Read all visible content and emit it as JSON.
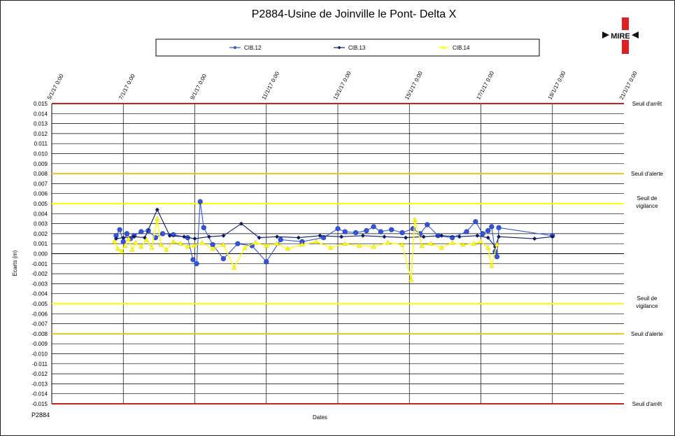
{
  "chart_data": {
    "type": "line",
    "title": "P2884-Usine de  Joinville le Pont- Delta X",
    "xlabel": "Dates",
    "ylabel": "Ecarts (m)",
    "corner_label": "P2884",
    "logo_text": "MIRE",
    "x_ticks": [
      "5/1/17 0:00",
      "7/1/17 0:00",
      "9/1/17 0:00",
      "11/1/17 0:00",
      "13/1/17 0:00",
      "15/1/17 0:00",
      "17/1/17 0:00",
      "19/1/17 0:00",
      "21/1/17 0:00"
    ],
    "x_tick_values": [
      0,
      2,
      4,
      6,
      8,
      10,
      12,
      14,
      16
    ],
    "xlim": [
      0,
      16
    ],
    "ylim": [
      -0.015,
      0.015
    ],
    "y_ticks": [
      "0.015",
      "0.014",
      "0.013",
      "0.012",
      "0.011",
      "0.010",
      "0.009",
      "0.008",
      "0.007",
      "0.006",
      "0.005",
      "0.004",
      "0.003",
      "0.002",
      "0.001",
      "0.000",
      "-0.001",
      "-0.002",
      "-0.003",
      "-0.004",
      "-0.005",
      "-0.006",
      "-0.007",
      "-0.008",
      "-0.009",
      "-0.010",
      "-0.011",
      "-0.012",
      "-0.013",
      "-0.014",
      "-0.015"
    ],
    "y_tick_values": [
      0.015,
      0.014,
      0.013,
      0.012,
      0.011,
      0.01,
      0.009,
      0.008,
      0.007,
      0.006,
      0.005,
      0.004,
      0.003,
      0.002,
      0.001,
      0.0,
      -0.001,
      -0.002,
      -0.003,
      -0.004,
      -0.005,
      -0.006,
      -0.007,
      -0.008,
      -0.009,
      -0.01,
      -0.011,
      -0.012,
      -0.013,
      -0.014,
      -0.015
    ],
    "grid": true,
    "legend_position": "top",
    "thresholds": [
      {
        "label": "Seuil d'arrêt",
        "value": 0.015,
        "color": "#c0241c"
      },
      {
        "label": "Seuil d'alerte",
        "value": 0.008,
        "color": "#e8c41a"
      },
      {
        "label": "Seuil de vigilance",
        "value": 0.005,
        "color": "#ffff00"
      },
      {
        "label": "Seuil de vigilance",
        "value": -0.005,
        "color": "#ffff00"
      },
      {
        "label": "Seuil d'alerte",
        "value": -0.008,
        "color": "#e8c41a"
      },
      {
        "label": "Seuil d'arrêt",
        "value": -0.015,
        "color": "#c0241c"
      }
    ],
    "series": [
      {
        "name": "CIB.12",
        "color": "#3355dd",
        "marker": "circle",
        "points": [
          [
            1.8,
            0.0018
          ],
          [
            1.9,
            0.0024
          ],
          [
            2.0,
            0.0012
          ],
          [
            2.1,
            0.002
          ],
          [
            2.2,
            0.0015
          ],
          [
            2.3,
            0.0018
          ],
          [
            2.5,
            0.0022
          ],
          [
            2.7,
            0.0023
          ],
          [
            2.9,
            0.0016
          ],
          [
            3.1,
            0.002
          ],
          [
            3.4,
            0.0019
          ],
          [
            3.8,
            0.0016
          ],
          [
            3.95,
            -0.0006
          ],
          [
            4.05,
            -0.001
          ],
          [
            4.15,
            0.0052
          ],
          [
            4.25,
            0.0026
          ],
          [
            4.5,
            0.0009
          ],
          [
            4.8,
            -0.0005
          ],
          [
            5.2,
            0.001
          ],
          [
            5.6,
            0.0008
          ],
          [
            6.0,
            -0.0008
          ],
          [
            6.4,
            0.0014
          ],
          [
            7.0,
            0.0012
          ],
          [
            7.6,
            0.0016
          ],
          [
            8.0,
            0.0025
          ],
          [
            8.2,
            0.0022
          ],
          [
            8.5,
            0.0021
          ],
          [
            8.8,
            0.0023
          ],
          [
            9.0,
            0.0027
          ],
          [
            9.2,
            0.0022
          ],
          [
            9.5,
            0.0024
          ],
          [
            9.8,
            0.0021
          ],
          [
            10.1,
            0.0025
          ],
          [
            10.3,
            0.002
          ],
          [
            10.5,
            0.0029
          ],
          [
            10.8,
            0.0018
          ],
          [
            11.2,
            0.0016
          ],
          [
            11.6,
            0.0022
          ],
          [
            11.85,
            0.0032
          ],
          [
            12.05,
            0.002
          ],
          [
            12.2,
            0.0023
          ],
          [
            12.3,
            0.0027
          ],
          [
            12.4,
            0.0002
          ],
          [
            12.45,
            -0.0003
          ],
          [
            12.5,
            0.0026
          ],
          [
            14.0,
            0.0018
          ]
        ]
      },
      {
        "name": "CIB.13",
        "color": "#0c1a66",
        "marker": "diamond",
        "points": [
          [
            1.8,
            0.0015
          ],
          [
            2.0,
            0.0016
          ],
          [
            2.3,
            0.0017
          ],
          [
            2.6,
            0.0016
          ],
          [
            2.95,
            0.0044
          ],
          [
            3.3,
            0.0018
          ],
          [
            3.7,
            0.0017
          ],
          [
            4.0,
            0.0015
          ],
          [
            4.4,
            0.0017
          ],
          [
            4.8,
            0.0018
          ],
          [
            5.3,
            0.003
          ],
          [
            5.8,
            0.0016
          ],
          [
            6.3,
            0.0017
          ],
          [
            6.9,
            0.0016
          ],
          [
            7.5,
            0.0018
          ],
          [
            8.1,
            0.0017
          ],
          [
            8.7,
            0.0018
          ],
          [
            9.3,
            0.0017
          ],
          [
            9.9,
            0.0016
          ],
          [
            10.4,
            0.0017
          ],
          [
            10.9,
            0.0018
          ],
          [
            11.4,
            0.0017
          ],
          [
            11.9,
            0.0018
          ],
          [
            12.2,
            0.0016
          ],
          [
            12.4,
            0.0007
          ],
          [
            12.5,
            0.0017
          ],
          [
            13.5,
            0.0015
          ],
          [
            14.0,
            0.0017
          ]
        ]
      },
      {
        "name": "CIB.14",
        "color": "#ffff00",
        "marker": "triangle",
        "points": [
          [
            1.75,
            0.0012
          ],
          [
            1.85,
            0.0005
          ],
          [
            1.95,
            0.0002
          ],
          [
            2.05,
            0.0008
          ],
          [
            2.15,
            0.0015
          ],
          [
            2.25,
            0.0004
          ],
          [
            2.35,
            0.0011
          ],
          [
            2.5,
            0.0007
          ],
          [
            2.65,
            0.0014
          ],
          [
            2.8,
            0.0006
          ],
          [
            2.95,
            0.0035
          ],
          [
            3.05,
            0.0009
          ],
          [
            3.2,
            0.0004
          ],
          [
            3.4,
            0.0012
          ],
          [
            3.6,
            0.001
          ],
          [
            3.8,
            0.0007
          ],
          [
            4.0,
            0.0008
          ],
          [
            4.2,
            0.0011
          ],
          [
            4.5,
            0.0005
          ],
          [
            4.8,
            0.0009
          ],
          [
            5.1,
            -0.0014
          ],
          [
            5.4,
            0.0006
          ],
          [
            5.7,
            0.0011
          ],
          [
            6.0,
            0.0008
          ],
          [
            6.3,
            0.001
          ],
          [
            6.6,
            0.0005
          ],
          [
            7.0,
            0.0009
          ],
          [
            7.4,
            0.0012
          ],
          [
            7.8,
            0.0006
          ],
          [
            8.2,
            0.001
          ],
          [
            8.6,
            0.0008
          ],
          [
            9.0,
            0.0007
          ],
          [
            9.4,
            0.0011
          ],
          [
            9.8,
            0.0009
          ],
          [
            10.05,
            -0.0026
          ],
          [
            10.15,
            0.0034
          ],
          [
            10.35,
            0.0008
          ],
          [
            10.6,
            0.001
          ],
          [
            10.9,
            0.0006
          ],
          [
            11.2,
            0.0011
          ],
          [
            11.5,
            0.0009
          ],
          [
            11.8,
            0.001
          ],
          [
            12.0,
            0.0012
          ],
          [
            12.2,
            0.0006
          ],
          [
            12.3,
            -0.0012
          ],
          [
            12.45,
            0.0009
          ]
        ]
      }
    ]
  }
}
